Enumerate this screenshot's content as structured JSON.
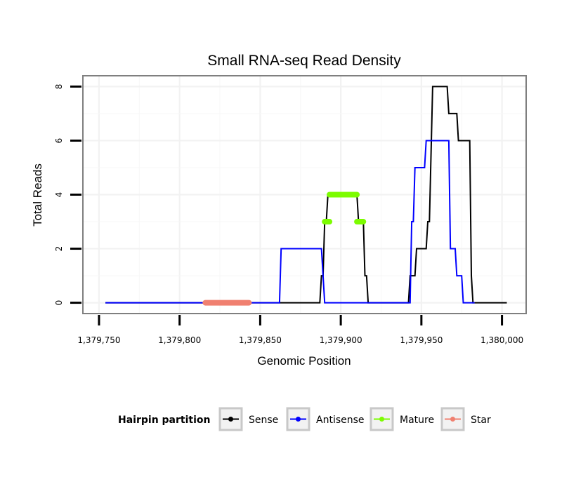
{
  "chart_data": {
    "type": "line",
    "title": "Small RNA-seq Read Density",
    "xlabel": "Genomic Position",
    "ylabel": "Total Reads",
    "xlim": [
      1379740,
      1380015
    ],
    "ylim": [
      -0.4,
      8.4
    ],
    "x_ticks": [
      1379750,
      1379800,
      1379850,
      1379900,
      1379950,
      1380000
    ],
    "x_tick_labels": [
      "1,379,750",
      "1,379,800",
      "1,379,850",
      "1,379,900",
      "1,379,950",
      "1,380,000"
    ],
    "y_ticks": [
      0,
      2,
      4,
      6,
      8
    ],
    "y_tick_labels": [
      "0",
      "2",
      "4",
      "6",
      "8"
    ],
    "grid": true,
    "legend": {
      "title": "Hairpin partition",
      "placement": "bottom",
      "entries": [
        "Sense",
        "Antisense",
        "Mature",
        "Star"
      ]
    },
    "series": [
      {
        "name": "Sense",
        "color": "#000000",
        "x": [
          1379754,
          1379887,
          1379888,
          1379889,
          1379890,
          1379891,
          1379892,
          1379909,
          1379910,
          1379911,
          1379914,
          1379915,
          1379916,
          1379917,
          1379942,
          1379943,
          1379946,
          1379947,
          1379952,
          1379953,
          1379954,
          1379955,
          1379957,
          1379958,
          1379966,
          1379967,
          1379972,
          1379973,
          1379980,
          1379981,
          1379982,
          1380003
        ],
        "y": [
          0,
          0,
          1,
          1,
          3,
          3,
          4,
          4,
          4,
          3,
          3,
          1,
          1,
          0,
          0,
          1,
          1,
          2,
          2,
          2,
          3,
          3,
          8,
          8,
          8,
          7,
          7,
          6,
          6,
          1,
          0,
          0
        ]
      },
      {
        "name": "Antisense",
        "color": "#0000ff",
        "x": [
          1379754,
          1379862,
          1379863,
          1379888,
          1379889,
          1379890,
          1379943,
          1379944,
          1379945,
          1379946,
          1379952,
          1379953,
          1379967,
          1379968,
          1379971,
          1379972,
          1379975,
          1379976,
          1379983
        ],
        "y": [
          0,
          0,
          2,
          2,
          1,
          0,
          0,
          3,
          3,
          5,
          5,
          6,
          6,
          2,
          2,
          1,
          1,
          0,
          0
        ]
      },
      {
        "name": "Mature",
        "color": "#7cfc00",
        "segments": [
          {
            "x": [
              1379890,
              1379893
            ],
            "y": 3
          },
          {
            "x": [
              1379893,
              1379910
            ],
            "y": 4
          },
          {
            "x": [
              1379910,
              1379914
            ],
            "y": 3
          }
        ]
      },
      {
        "name": "Star",
        "color": "#f08070",
        "segments": [
          {
            "x": [
              1379816,
              1379843
            ],
            "y": 0
          }
        ]
      }
    ]
  }
}
